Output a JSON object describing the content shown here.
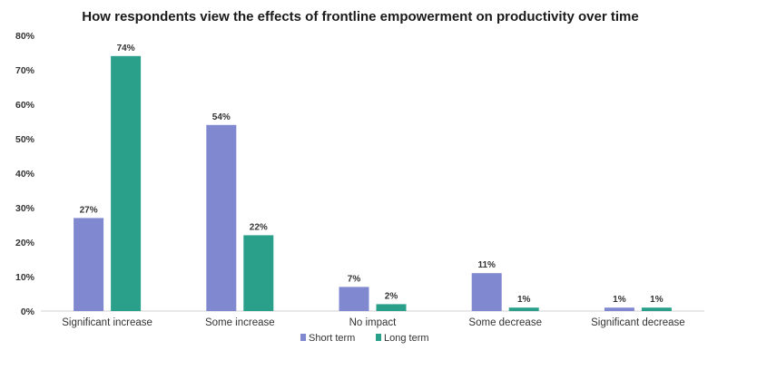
{
  "chart_data": {
    "type": "bar",
    "title": "How respondents view the effects of frontline empowerment on productivity over time",
    "xlabel": "",
    "ylabel": "",
    "ylim": [
      0,
      80
    ],
    "yticks": [
      "0%",
      "10%",
      "20%",
      "30%",
      "40%",
      "50%",
      "60%",
      "70%",
      "80%"
    ],
    "categories": [
      "Significant increase",
      "Some increase",
      "No impact",
      "Some decrease",
      "Significant decrease"
    ],
    "series": [
      {
        "name": "Short term",
        "values": [
          27,
          54,
          7,
          11,
          1
        ],
        "labels": [
          "27%",
          "54%",
          "7%",
          "11%",
          "1%"
        ],
        "color": "#8088d0"
      },
      {
        "name": "Long term",
        "values": [
          74,
          22,
          2,
          1,
          1
        ],
        "labels": [
          "74%",
          "22%",
          "2%",
          "1%",
          "1%"
        ],
        "color": "#2aa08a"
      }
    ],
    "grid": false,
    "legend_position": "bottom"
  }
}
